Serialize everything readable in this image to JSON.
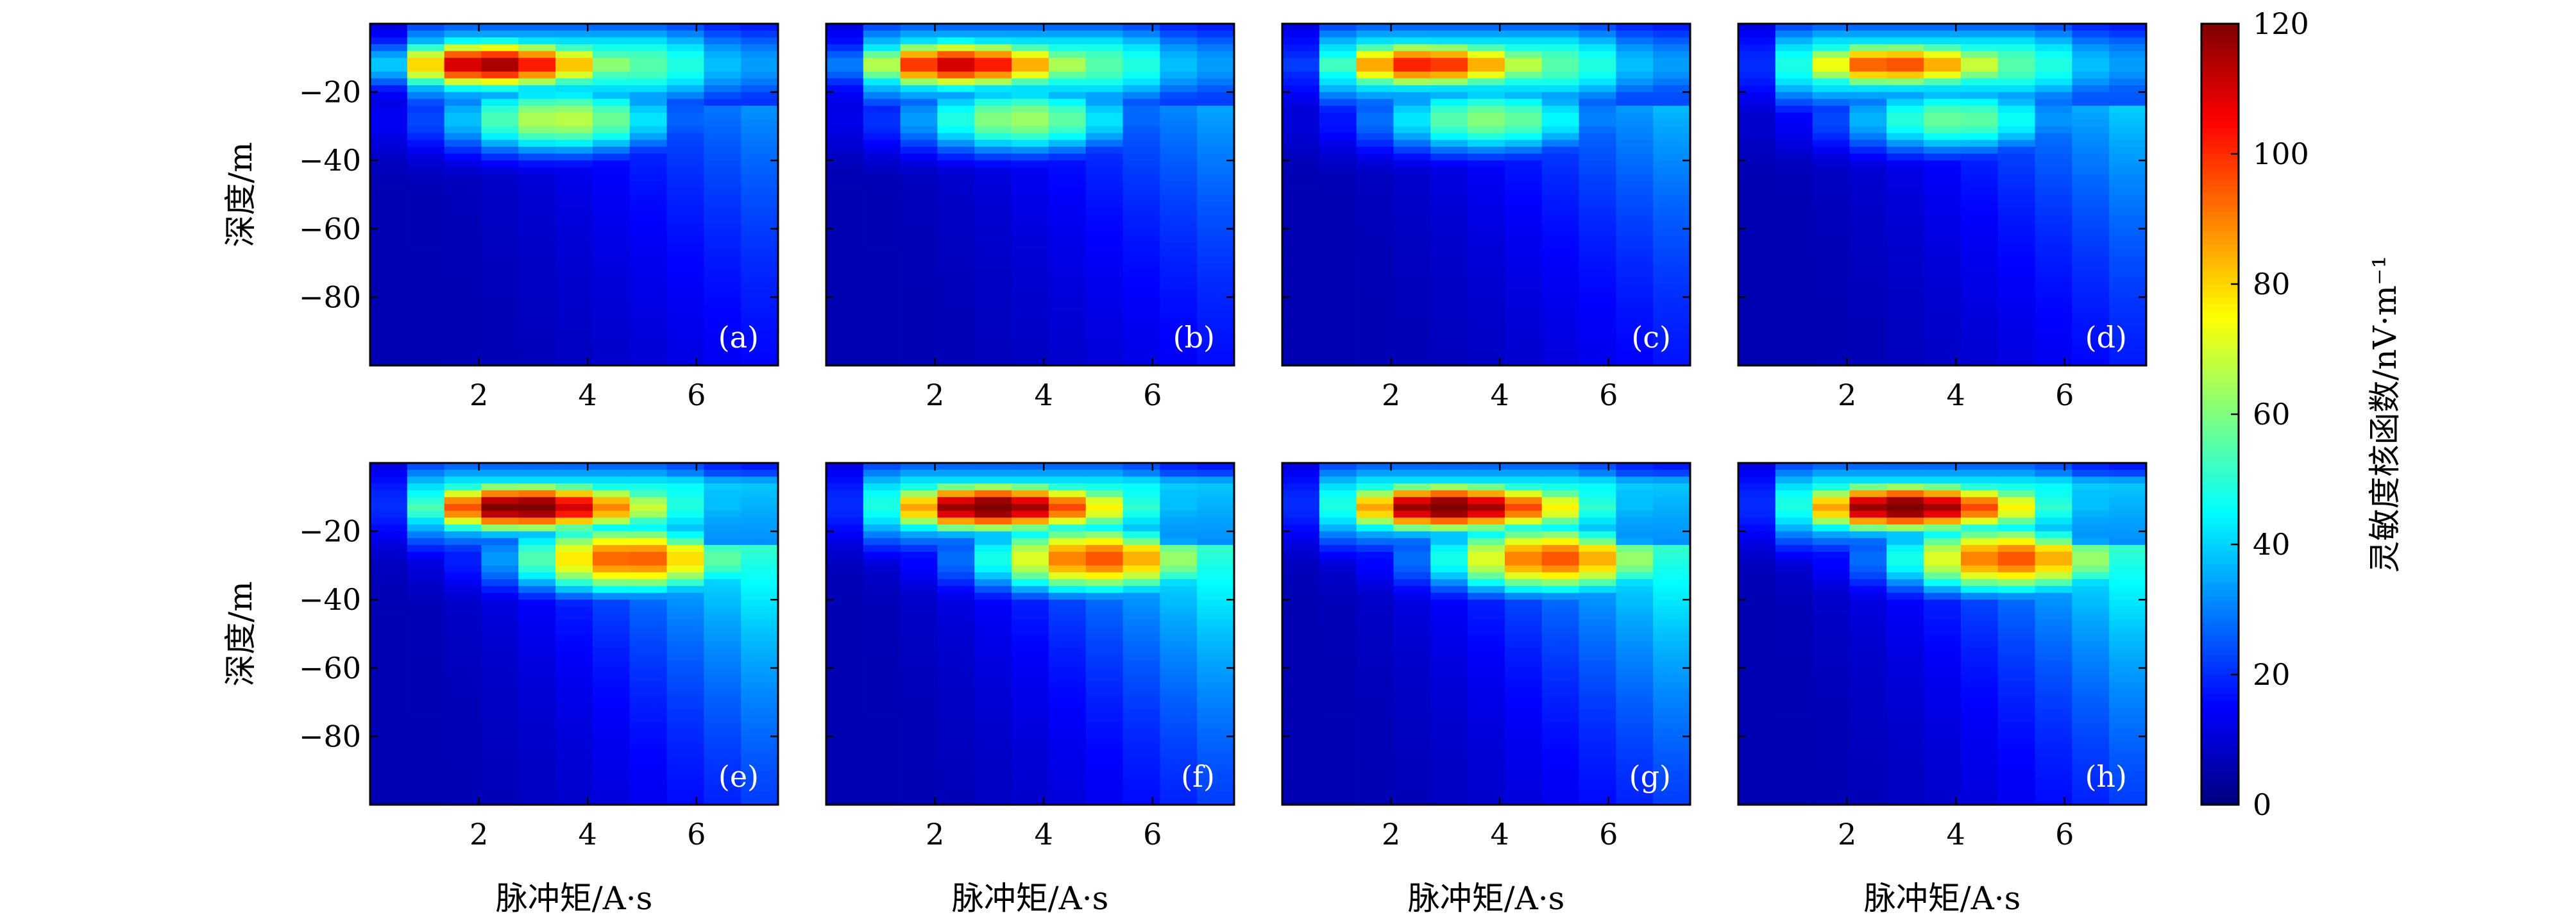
{
  "chart_data": {
    "type": "heatmap",
    "description_scale": "color encodes sensitivity kernel value",
    "xlabel": "脉冲矩/A·s",
    "ylabel": "深度/m",
    "xticks": [
      2,
      4,
      6
    ],
    "yticks": [
      -20,
      -40,
      -60,
      -80
    ],
    "xlim": [
      0,
      7.5
    ],
    "ylim": [
      -100,
      0
    ],
    "colorbar": {
      "label": "灵敏度核函数/nV·m⁻¹",
      "ticks": [
        0,
        20,
        40,
        60,
        80,
        100,
        120
      ],
      "range": [
        0,
        120
      ],
      "colormap": "jet"
    },
    "panels": [
      {
        "label": "(a)",
        "peak_value": 112,
        "peak_x": 2.2,
        "peak_depth": -12,
        "secondary_value": 62,
        "secondary_x": 3.5,
        "secondary_depth": -28,
        "tail_strength": 0.55
      },
      {
        "label": "(b)",
        "peak_value": 106,
        "peak_x": 2.4,
        "peak_depth": -12,
        "secondary_value": 58,
        "secondary_x": 3.6,
        "secondary_depth": -28,
        "tail_strength": 0.6
      },
      {
        "label": "(c)",
        "peak_value": 98,
        "peak_x": 2.6,
        "peak_depth": -12,
        "secondary_value": 55,
        "secondary_x": 3.8,
        "secondary_depth": -28,
        "tail_strength": 0.65
      },
      {
        "label": "(d)",
        "peak_value": 92,
        "peak_x": 2.8,
        "peak_depth": -12,
        "secondary_value": 52,
        "secondary_x": 4.0,
        "secondary_depth": -28,
        "tail_strength": 0.7
      },
      {
        "label": "(e)",
        "peak_value": 120,
        "peak_x": 2.8,
        "peak_depth": -13,
        "secondary_value": 90,
        "secondary_x": 4.8,
        "secondary_depth": -28,
        "tail_strength": 0.95
      },
      {
        "label": "(f)",
        "peak_value": 120,
        "peak_x": 3.0,
        "peak_depth": -13,
        "secondary_value": 90,
        "secondary_x": 5.0,
        "secondary_depth": -28,
        "tail_strength": 0.95
      },
      {
        "label": "(g)",
        "peak_value": 120,
        "peak_x": 3.0,
        "peak_depth": -13,
        "secondary_value": 90,
        "secondary_x": 5.0,
        "secondary_depth": -28,
        "tail_strength": 0.95
      },
      {
        "label": "(h)",
        "peak_value": 120,
        "peak_x": 3.0,
        "peak_depth": -13,
        "secondary_value": 90,
        "secondary_x": 5.0,
        "secondary_depth": -28,
        "tail_strength": 0.95
      }
    ]
  }
}
